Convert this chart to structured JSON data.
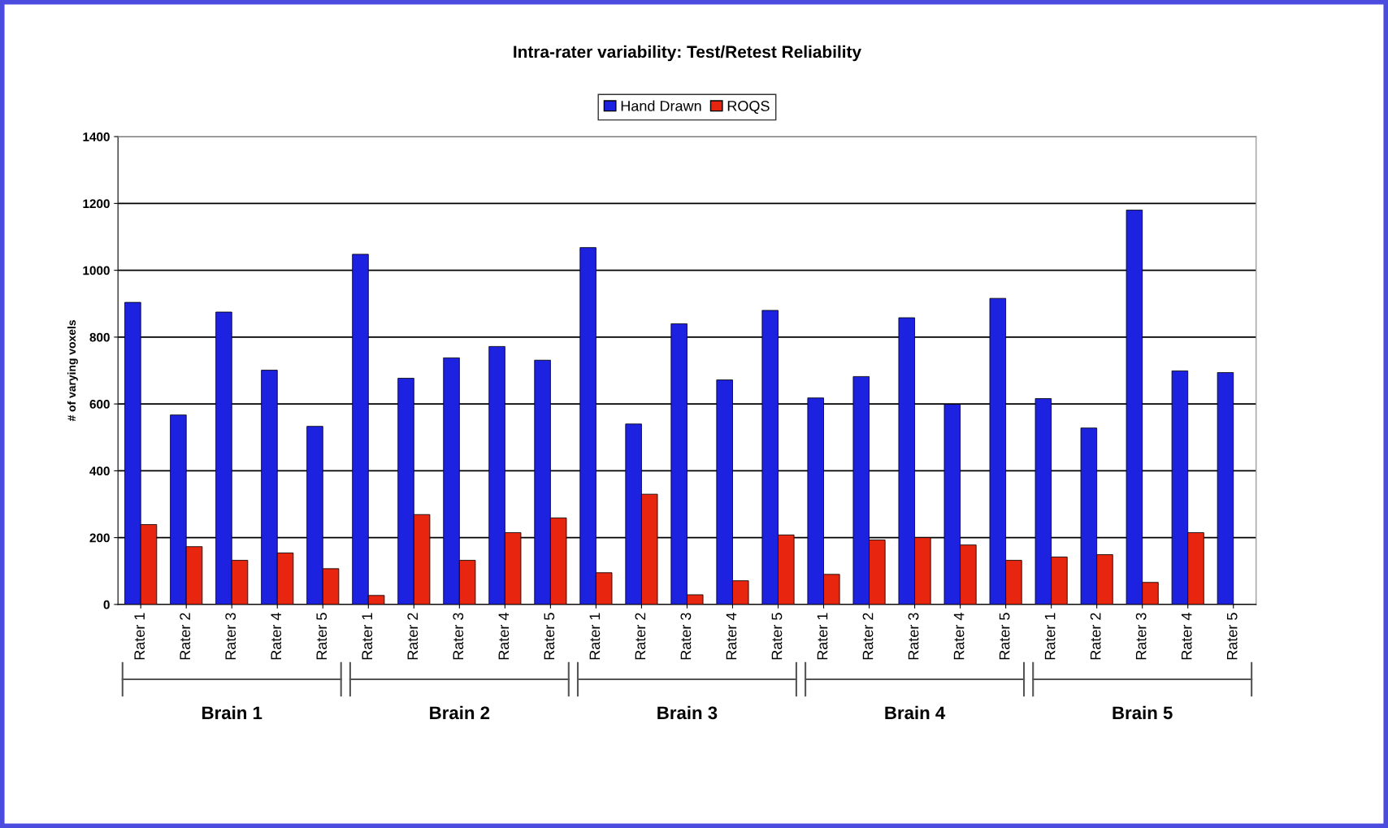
{
  "chart_data": {
    "type": "bar",
    "title": "Intra-rater variability: Test/Retest Reliability",
    "ylabel": "# of varying voxels",
    "categories": [
      "Rater 1",
      "Rater 2",
      "Rater 3",
      "Rater 4",
      "Rater 5",
      "Rater 1",
      "Rater 2",
      "Rater 3",
      "Rater 4",
      "Rater 5",
      "Rater 1",
      "Rater 2",
      "Rater 3",
      "Rater 4",
      "Rater 5",
      "Rater 1",
      "Rater 2",
      "Rater 3",
      "Rater 4",
      "Rater 5",
      "Rater 1",
      "Rater 2",
      "Rater 3",
      "Rater 4",
      "Rater 5"
    ],
    "series": [
      {
        "name": "Hand Drawn",
        "color": "#1c22e0",
        "values": [
          904,
          567,
          875,
          701,
          533,
          1048,
          677,
          738,
          772,
          731,
          1068,
          540,
          840,
          672,
          880,
          618,
          682,
          858,
          599,
          916,
          616,
          528,
          1180,
          699,
          694
        ]
      },
      {
        "name": "ROQS",
        "color": "#e8260f",
        "values": [
          239,
          173,
          132,
          154,
          107,
          27,
          269,
          132,
          215,
          259,
          95,
          330,
          29,
          71,
          208,
          90,
          193,
          200,
          178,
          132,
          142,
          149,
          66,
          215,
          0
        ]
      }
    ],
    "ylim": [
      0,
      1400
    ],
    "yticks": [
      0,
      200,
      400,
      600,
      800,
      1000,
      1200,
      1400
    ],
    "grid": "y",
    "legend": "top",
    "annotations": [
      "Brain 1",
      "Brain 2",
      "Brain 3",
      "Brain 4",
      "Brain 5"
    ]
  }
}
